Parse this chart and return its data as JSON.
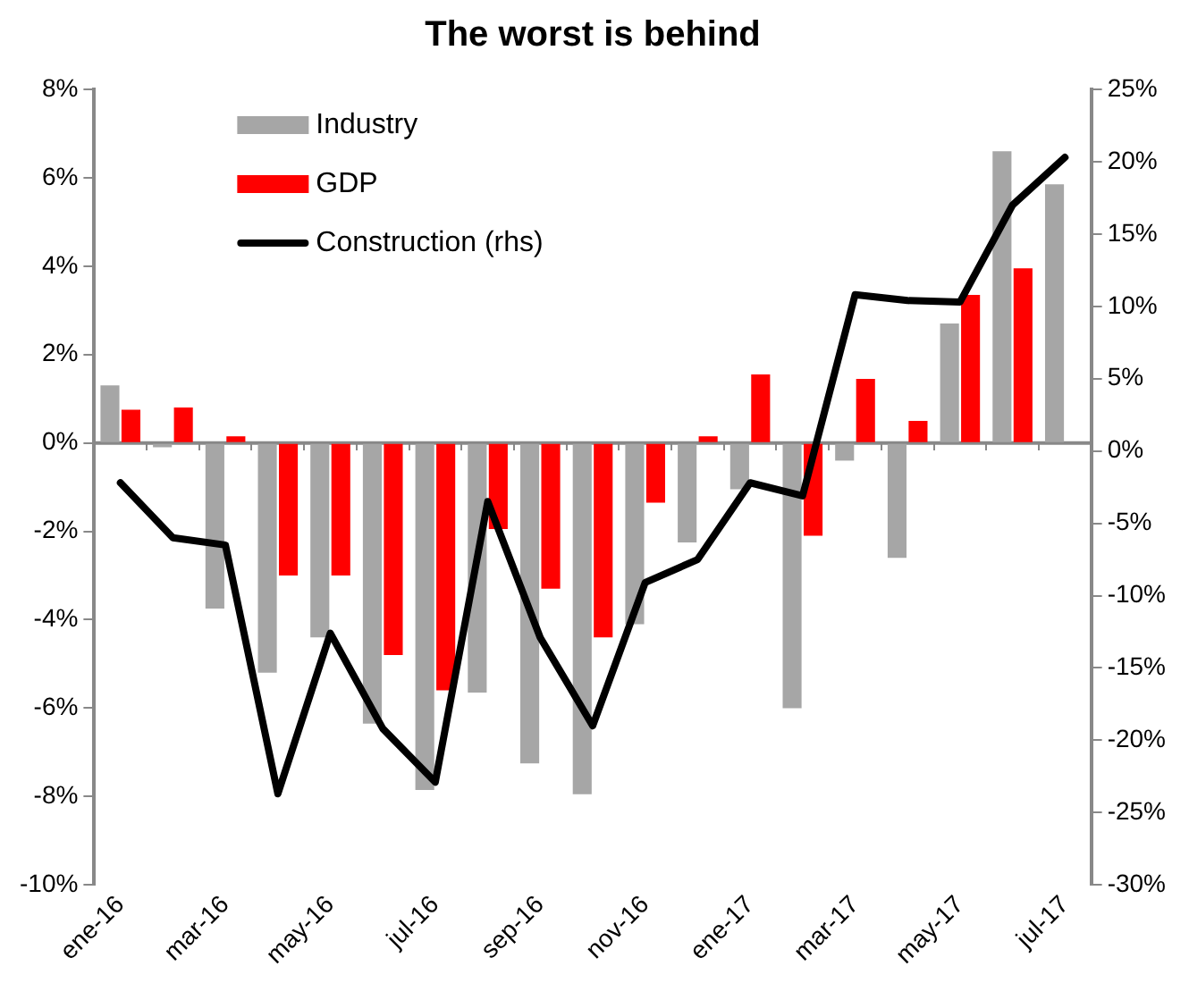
{
  "chart_data": {
    "type": "bar",
    "title": "The worst is behind",
    "categories": [
      "ene-16",
      null,
      "mar-16",
      null,
      "may-16",
      null,
      "jul-16",
      null,
      "sep-16",
      null,
      "nov-16",
      null,
      "ene-17",
      null,
      "mar-17",
      null,
      "may-17",
      null,
      "jul-17"
    ],
    "series": [
      {
        "name": "Industry",
        "color": "#a6a6a6",
        "values": [
          1.3,
          -0.1,
          -3.75,
          -5.2,
          -4.4,
          -6.35,
          -7.85,
          -5.65,
          -7.25,
          -7.95,
          -4.1,
          -2.25,
          -1.05,
          -6.0,
          -0.4,
          -2.6,
          2.7,
          6.6,
          5.85
        ]
      },
      {
        "name": "GDP",
        "color": "#ff0000",
        "values": [
          0.75,
          0.8,
          0.15,
          -3.0,
          -3.0,
          -4.8,
          -5.6,
          -1.95,
          -3.3,
          -4.4,
          -1.35,
          0.15,
          1.55,
          -2.1,
          1.45,
          0.5,
          3.35,
          3.95,
          null
        ]
      },
      {
        "name": "Construction (rhs)",
        "type": "line",
        "axis": "y2",
        "color": "#000000",
        "values": [
          -2.2,
          -6.0,
          -6.5,
          -23.7,
          -12.6,
          -19.2,
          -22.9,
          -3.5,
          -12.9,
          -19.0,
          -9.1,
          -7.5,
          -2.2,
          -3.1,
          10.8,
          10.4,
          10.3,
          17.0,
          20.3
        ]
      }
    ],
    "ylim": [
      -10,
      8
    ],
    "yticks": [
      {
        "value": -10,
        "label": "-10%"
      },
      {
        "value": -8,
        "label": "-8%"
      },
      {
        "value": -6,
        "label": "-6%"
      },
      {
        "value": -4,
        "label": "-4%"
      },
      {
        "value": -2,
        "label": "-2%"
      },
      {
        "value": 0,
        "label": "0%"
      },
      {
        "value": 2,
        "label": "2%"
      },
      {
        "value": 4,
        "label": "4%"
      },
      {
        "value": 6,
        "label": "6%"
      },
      {
        "value": 8,
        "label": "8%"
      }
    ],
    "y2lim": [
      -30,
      25
    ],
    "y2ticks": [
      {
        "value": -30,
        "label": "-30%"
      },
      {
        "value": -25,
        "label": "-25%"
      },
      {
        "value": -20,
        "label": "-20%"
      },
      {
        "value": -15,
        "label": "-15%"
      },
      {
        "value": -10,
        "label": "-10%"
      },
      {
        "value": -5,
        "label": "-5%"
      },
      {
        "value": 0,
        "label": "0%"
      },
      {
        "value": 5,
        "label": "5%"
      },
      {
        "value": 10,
        "label": "10%"
      },
      {
        "value": 15,
        "label": "15%"
      },
      {
        "value": 20,
        "label": "20%"
      },
      {
        "value": 25,
        "label": "25%"
      }
    ],
    "grid": false,
    "ref_lines": [
      {
        "axis": "y",
        "value": 0,
        "color": "#888888"
      }
    ],
    "legend": "top left"
  }
}
